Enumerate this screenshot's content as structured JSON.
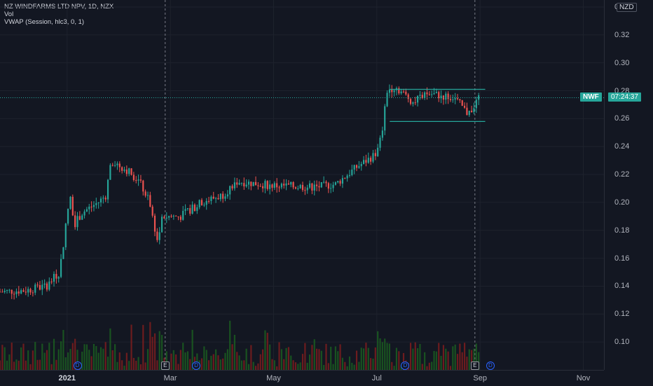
{
  "legend": {
    "title": "NZ WINDFARMS LTD NPV, 1D, NZX",
    "vol": "Vol",
    "vwap": "VWAP (Session, hlc3, 0, 1)"
  },
  "currency": "NZD",
  "symbol": "NWF",
  "countdown": "07:24:37",
  "colors": {
    "up": "#26a69a",
    "down": "#ef5350",
    "vol_up": "#1b5e20",
    "vol_down": "#7f1d1d",
    "bg": "#131722",
    "grid": "#1e222d"
  },
  "events": [
    {
      "type": "dividend",
      "icon": "D",
      "month_index": 0.2
    },
    {
      "type": "earnings",
      "icon": "E",
      "month_index": 1.9
    },
    {
      "type": "dividend",
      "icon": "D",
      "month_index": 2.5
    },
    {
      "type": "dividend",
      "icon": "D",
      "month_index": 6.55
    },
    {
      "type": "earnings",
      "icon": "E",
      "month_index": 7.9
    },
    {
      "type": "dividend",
      "icon": "D",
      "month_index": 8.2
    }
  ],
  "chart_data": {
    "type": "candlestick",
    "y_ticks": [
      "0.34",
      "0.32",
      "0.30",
      "0.28",
      "0.26",
      "0.24",
      "0.22",
      "0.20",
      "0.18",
      "0.16",
      "0.14",
      "0.12",
      "0.10"
    ],
    "x_ticks": [
      {
        "label": "2021",
        "bold": true,
        "month": 0
      },
      {
        "label": "Mar",
        "bold": false,
        "month": 2
      },
      {
        "label": "May",
        "bold": false,
        "month": 4
      },
      {
        "label": "Jul",
        "bold": false,
        "month": 6
      },
      {
        "label": "Sep",
        "bold": false,
        "month": 8
      },
      {
        "label": "Nov",
        "bold": false,
        "month": 10
      }
    ],
    "ylim": [
      0.08,
      0.345
    ],
    "xlim_months": [
      -1.3,
      10.4
    ],
    "current_price": 0.275,
    "price_path": [
      [
        -1.3,
        0.136
      ],
      [
        -0.8,
        0.137
      ],
      [
        -0.4,
        0.14
      ],
      [
        -0.15,
        0.15
      ],
      [
        0.0,
        0.19
      ],
      [
        0.05,
        0.205
      ],
      [
        0.15,
        0.185
      ],
      [
        0.3,
        0.193
      ],
      [
        0.6,
        0.2
      ],
      [
        0.75,
        0.205
      ],
      [
        0.85,
        0.23
      ],
      [
        1.2,
        0.222
      ],
      [
        1.4,
        0.215
      ],
      [
        1.6,
        0.2
      ],
      [
        1.75,
        0.172
      ],
      [
        1.85,
        0.19
      ],
      [
        2.2,
        0.19
      ],
      [
        2.6,
        0.2
      ],
      [
        3.0,
        0.205
      ],
      [
        3.3,
        0.215
      ],
      [
        4.0,
        0.212
      ],
      [
        4.8,
        0.211
      ],
      [
        5.2,
        0.213
      ],
      [
        5.6,
        0.225
      ],
      [
        6.0,
        0.235
      ],
      [
        6.1,
        0.25
      ],
      [
        6.2,
        0.28
      ],
      [
        6.35,
        0.283
      ],
      [
        6.7,
        0.272
      ],
      [
        7.0,
        0.278
      ],
      [
        7.5,
        0.275
      ],
      [
        7.75,
        0.264
      ],
      [
        7.95,
        0.272
      ],
      [
        8.0,
        0.276
      ]
    ],
    "channel": {
      "upper": 0.281,
      "lower": 0.258,
      "from_month": 6.25,
      "to_month": 8.1
    },
    "event_lines_months": [
      1.9,
      7.9
    ]
  }
}
